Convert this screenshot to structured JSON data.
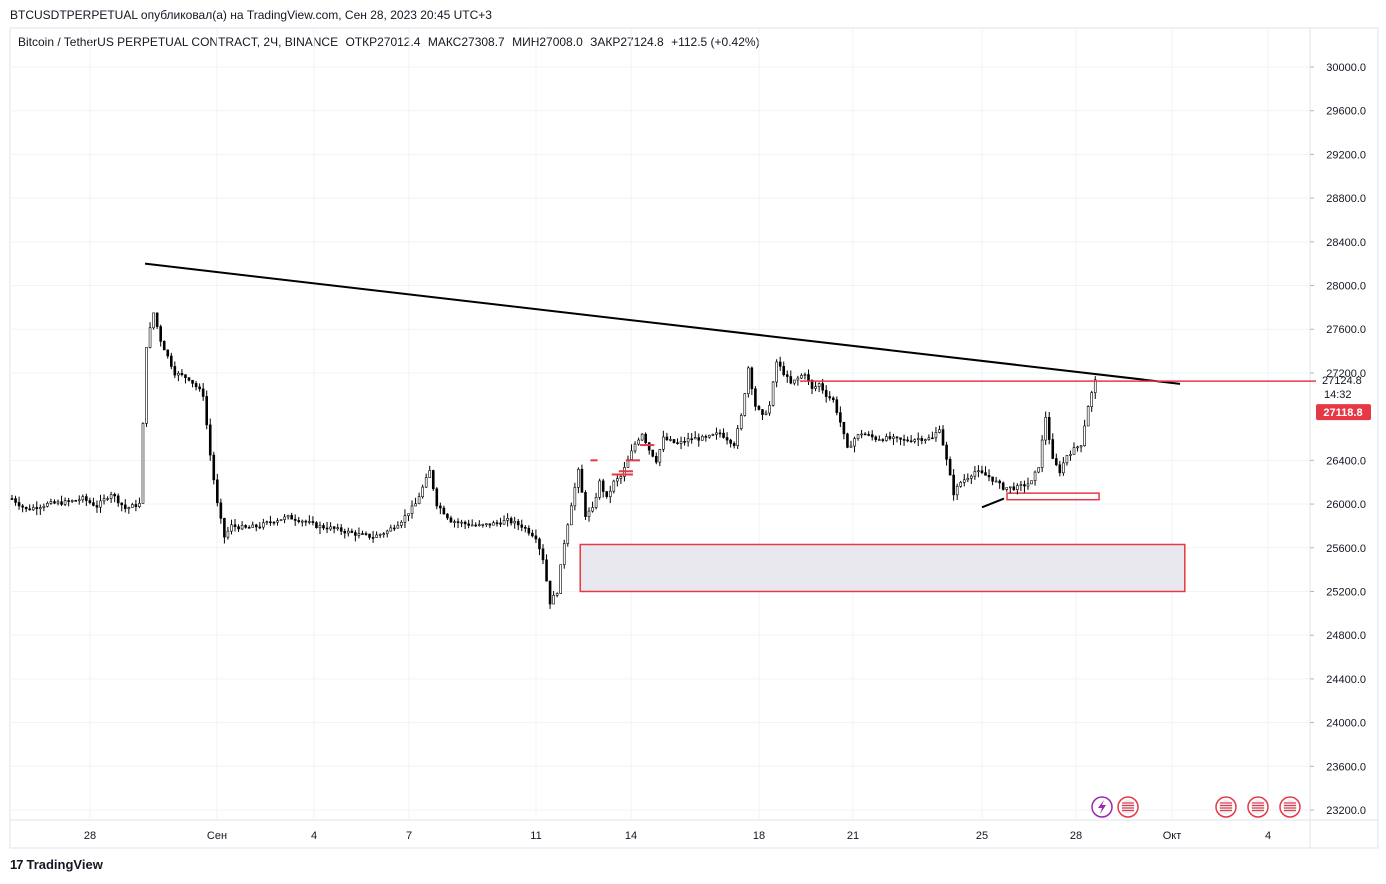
{
  "header": {
    "publish_line": "BTCUSDTPERPETUAL опубликовал(а) на TradingView.com, Сен 28, 2023 20:45 UTC+3",
    "symbol": "Bitcoin / TetherUS PERPETUAL CONTRACT, 2Ч, BINANCE",
    "open": "ОТКР27012.4",
    "high": "МАКС27308.7",
    "low": "МИН27008.0",
    "close": "ЗАКР27124.8",
    "change": "+112.5 (+0.42%)"
  },
  "brand": {
    "logo_text": "17",
    "name": "TradingView"
  },
  "colors": {
    "accent_red": "#e53945",
    "candle": "#000000",
    "zone_fill": "#e9e8ee",
    "grid": "#f0f3fa"
  },
  "chart_data": {
    "type": "candlestick",
    "ylim": [
      23000,
      30300
    ],
    "y_ticks": [
      "30000.0",
      "29600.0",
      "29200.0",
      "28800.0",
      "28400.0",
      "28000.0",
      "27600.0",
      "27200.0",
      "26400.0",
      "26000.0",
      "25600.0",
      "25200.0",
      "24800.0",
      "24400.0",
      "24000.0",
      "23600.0",
      "23200.0"
    ],
    "x_ticks": [
      "28",
      "Сен",
      "4",
      "7",
      "11",
      "14",
      "18",
      "21",
      "25",
      "28",
      "Окт",
      "4"
    ],
    "price_points": [
      [
        0,
        26050
      ],
      [
        2,
        25950
      ],
      [
        5,
        26000
      ],
      [
        8,
        26020
      ],
      [
        10,
        26050
      ],
      [
        12,
        25980
      ],
      [
        14,
        26100
      ],
      [
        16,
        25960
      ],
      [
        18,
        26000
      ],
      [
        19,
        27450
      ],
      [
        20,
        27750
      ],
      [
        21,
        27500
      ],
      [
        22,
        27350
      ],
      [
        23,
        27200
      ],
      [
        25,
        27150
      ],
      [
        27,
        27000
      ],
      [
        28,
        26450
      ],
      [
        29,
        26000
      ],
      [
        30,
        25700
      ],
      [
        31,
        25800
      ],
      [
        33,
        25780
      ],
      [
        35,
        25800
      ],
      [
        37,
        25850
      ],
      [
        39,
        25880
      ],
      [
        41,
        25850
      ],
      [
        43,
        25800
      ],
      [
        45,
        25780
      ],
      [
        47,
        25750
      ],
      [
        49,
        25720
      ],
      [
        51,
        25700
      ],
      [
        53,
        25750
      ],
      [
        55,
        25850
      ],
      [
        57,
        26000
      ],
      [
        59,
        26300
      ],
      [
        60,
        26000
      ],
      [
        62,
        25850
      ],
      [
        64,
        25820
      ],
      [
        66,
        25800
      ],
      [
        68,
        25820
      ],
      [
        70,
        25850
      ],
      [
        72,
        25800
      ],
      [
        74,
        25700
      ],
      [
        75,
        25500
      ],
      [
        76,
        25100
      ],
      [
        77,
        25200
      ],
      [
        78,
        25650
      ],
      [
        79,
        26000
      ],
      [
        80,
        26300
      ],
      [
        81,
        25900
      ],
      [
        82,
        25950
      ],
      [
        83,
        26200
      ],
      [
        84,
        26050
      ],
      [
        85,
        26200
      ],
      [
        86,
        26250
      ],
      [
        87,
        26400
      ],
      [
        88,
        26550
      ],
      [
        89,
        26650
      ],
      [
        90,
        26500
      ],
      [
        91,
        26400
      ],
      [
        92,
        26600
      ],
      [
        94,
        26550
      ],
      [
        96,
        26600
      ],
      [
        98,
        26600
      ],
      [
        100,
        26650
      ],
      [
        102,
        26550
      ],
      [
        103,
        26800
      ],
      [
        104,
        27250
      ],
      [
        105,
        26900
      ],
      [
        106,
        26800
      ],
      [
        107,
        26900
      ],
      [
        108,
        27300
      ],
      [
        109,
        27200
      ],
      [
        110,
        27100
      ],
      [
        111,
        27150
      ],
      [
        112,
        27200
      ],
      [
        113,
        27050
      ],
      [
        114,
        27100
      ],
      [
        115,
        27000
      ],
      [
        116,
        26950
      ],
      [
        117,
        26750
      ],
      [
        118,
        26500
      ],
      [
        119,
        26600
      ],
      [
        120,
        26650
      ],
      [
        122,
        26600
      ],
      [
        124,
        26600
      ],
      [
        126,
        26580
      ],
      [
        128,
        26600
      ],
      [
        130,
        26600
      ],
      [
        131,
        26700
      ],
      [
        132,
        26400
      ],
      [
        133,
        26100
      ],
      [
        134,
        26200
      ],
      [
        135,
        26250
      ],
      [
        136,
        26300
      ],
      [
        138,
        26250
      ],
      [
        140,
        26150
      ],
      [
        142,
        26150
      ],
      [
        144,
        26200
      ],
      [
        145,
        26350
      ],
      [
        146,
        26800
      ],
      [
        147,
        26400
      ],
      [
        148,
        26300
      ],
      [
        149,
        26450
      ],
      [
        150,
        26500
      ],
      [
        151,
        26550
      ],
      [
        152,
        26900
      ],
      [
        153,
        27124.8
      ]
    ],
    "annotations": {
      "trendline": [
        [
          18,
          28200
        ],
        [
          163,
          27100
        ]
      ],
      "lower_trend_segment": [
        [
          136,
          25970
        ],
        [
          139,
          26050
        ]
      ],
      "resistance_line": {
        "from": 110,
        "to": 175,
        "y": 27124.8
      },
      "demand_zone": {
        "x": [
          78,
          160
        ],
        "y": [
          25200,
          25630
        ]
      },
      "small_zone": {
        "x": [
          138,
          151
        ],
        "y": [
          26040,
          26100
        ]
      },
      "red_steps": [
        {
          "x": [
            81,
            82
          ],
          "y": 26400
        },
        {
          "x": [
            84,
            87
          ],
          "y": 26270
        },
        {
          "x": [
            85,
            87
          ],
          "y": 26300
        },
        {
          "x": [
            86,
            88
          ],
          "y": 26400
        },
        {
          "x": [
            88,
            90
          ],
          "y": 26540
        }
      ]
    },
    "last_price": {
      "value_label": "27124.8",
      "countdown": "14:32",
      "bid_label": "27118.8"
    }
  }
}
